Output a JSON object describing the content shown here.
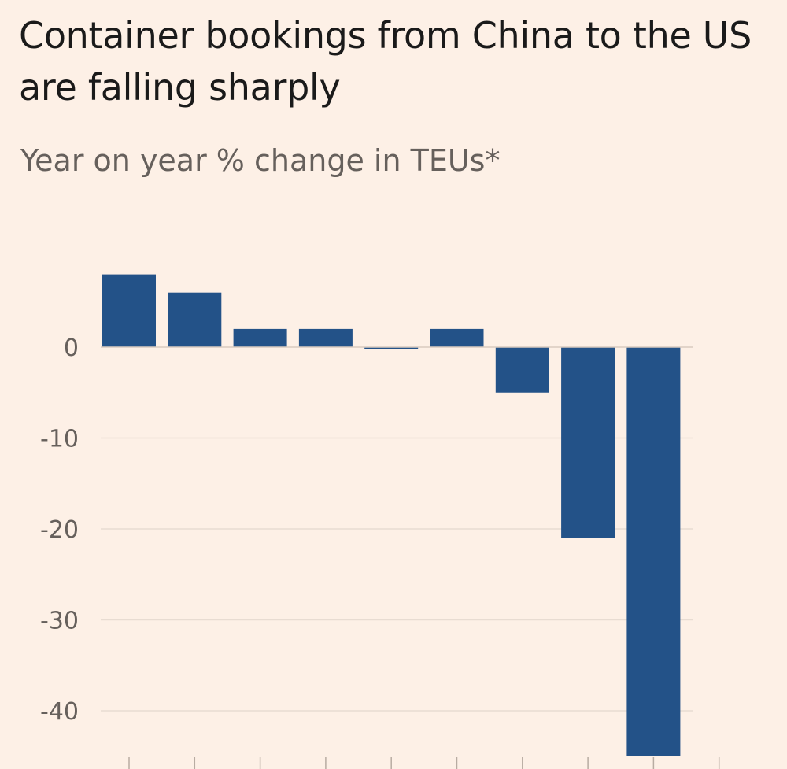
{
  "chart_data": {
    "type": "bar",
    "title": "Container bookings from China to the US are falling sharply",
    "subtitle": "Year on year % change in TEUs*",
    "xlabel": "",
    "ylabel": "",
    "categories": [
      "",
      "",
      "",
      "",
      "",
      "",
      "",
      "",
      ""
    ],
    "values": [
      8,
      6,
      2,
      2,
      -0.2,
      2,
      -5,
      -21,
      -45
    ],
    "ylim": [
      -45,
      10
    ],
    "yticks": [
      0,
      -10,
      -20,
      -30,
      -40
    ],
    "ytick_labels": [
      "0",
      "-10",
      "-20",
      "-30",
      "-40"
    ],
    "grid": true,
    "legend": "none",
    "colors": {
      "bar": "#235288",
      "grid": "#e8dcd2",
      "zero_line": "#d9cbbf",
      "tick_mark": "#b8aca2",
      "background": "#fdf0e6"
    }
  }
}
